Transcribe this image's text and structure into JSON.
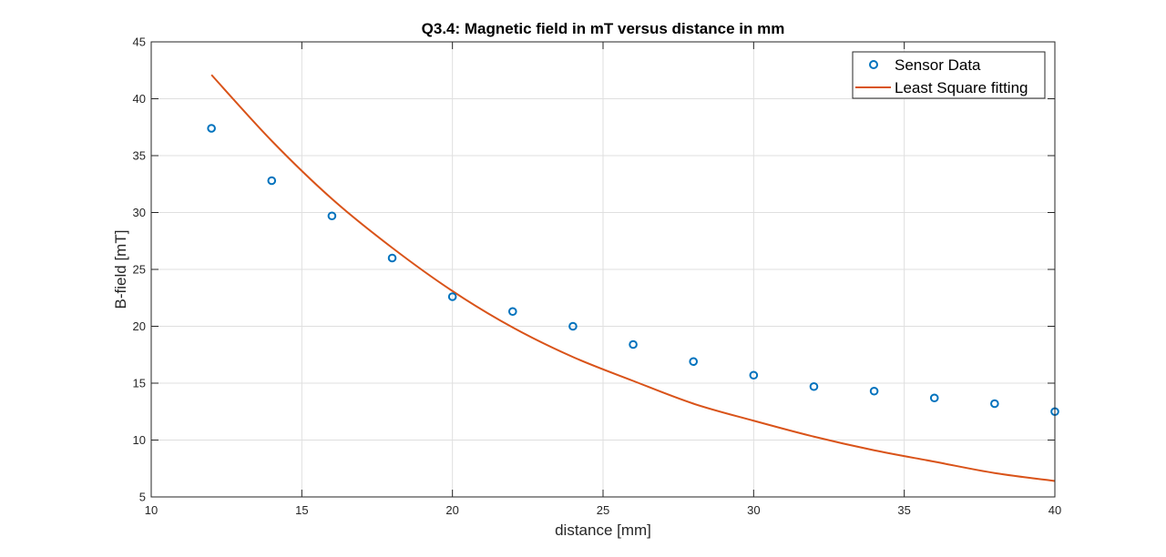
{
  "chart_data": {
    "type": "scatter",
    "title": "Q3.4: Magnetic field in mT versus distance in mm",
    "xlabel": "distance [mm]",
    "ylabel": "B-field [mT]",
    "xlim": [
      10,
      40
    ],
    "ylim": [
      5,
      45
    ],
    "xticks": [
      "10",
      "15",
      "20",
      "25",
      "30",
      "35",
      "40"
    ],
    "yticks": [
      "5",
      "10",
      "15",
      "20",
      "25",
      "30",
      "35",
      "40",
      "45"
    ],
    "grid": true,
    "legend_position": "top-right",
    "series": [
      {
        "name": "Sensor Data",
        "type": "scatter",
        "marker": "circle",
        "color": "#0072BD",
        "x": [
          12,
          14,
          16,
          18,
          20,
          22,
          24,
          26,
          28,
          30,
          32,
          34,
          36,
          38,
          40
        ],
        "y": [
          37.4,
          32.8,
          29.7,
          26.0,
          22.6,
          21.3,
          20.0,
          18.4,
          16.9,
          15.7,
          14.7,
          14.3,
          13.7,
          13.2,
          12.5
        ]
      },
      {
        "name": "Least Square fitting",
        "type": "line",
        "color": "#D95319",
        "x": [
          12,
          14,
          16,
          18,
          20,
          22,
          24,
          26,
          28,
          30,
          32,
          34,
          36,
          38,
          40
        ],
        "y": [
          42.1,
          36.3,
          31.2,
          26.9,
          23.1,
          19.9,
          17.3,
          15.2,
          13.2,
          11.7,
          10.3,
          9.1,
          8.1,
          7.1,
          6.4
        ]
      }
    ]
  }
}
